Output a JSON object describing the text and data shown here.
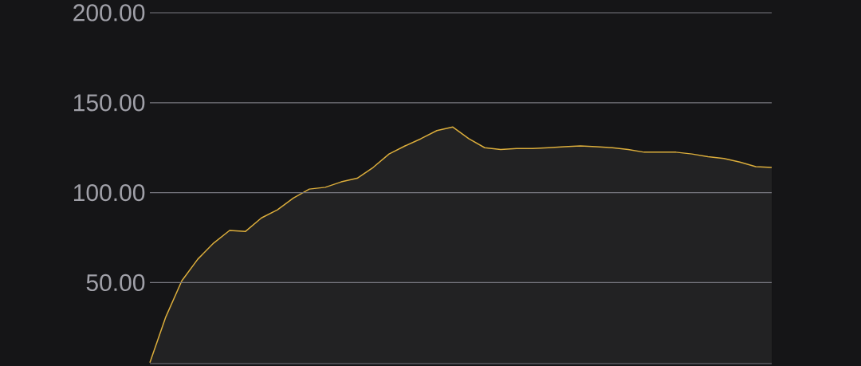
{
  "chart_data": {
    "type": "area",
    "color": "#dcae3c",
    "categories": [
      null,
      null,
      null,
      null,
      null,
      null,
      null,
      null,
      null,
      null,
      null,
      null,
      null,
      null,
      null,
      null,
      null,
      null,
      null,
      null,
      null,
      null,
      null,
      null,
      null,
      null,
      null,
      null,
      null,
      null,
      null,
      null,
      null,
      null,
      null,
      null,
      null,
      null,
      null,
      null
    ],
    "values": [
      5.5,
      31,
      51,
      63,
      72,
      79,
      78.5,
      86,
      90.5,
      97,
      102,
      103,
      106,
      108,
      114,
      121.5,
      126,
      130,
      134.5,
      136.5,
      130,
      125,
      124,
      124.5,
      124.5,
      125,
      125.5,
      126,
      125.5,
      125,
      124,
      122.5,
      122.5,
      122.5,
      121.5,
      120,
      119,
      117,
      114.5,
      114
    ],
    "ylim": [
      5,
      200
    ],
    "yticks": [
      {
        "value": 50,
        "label": "50.00"
      },
      {
        "value": 100,
        "label": "100.00"
      },
      {
        "value": 150,
        "label": "150.00"
      },
      {
        "value": 200,
        "label": "200.00"
      }
    ],
    "grid": "y",
    "tick_labels": "y"
  }
}
